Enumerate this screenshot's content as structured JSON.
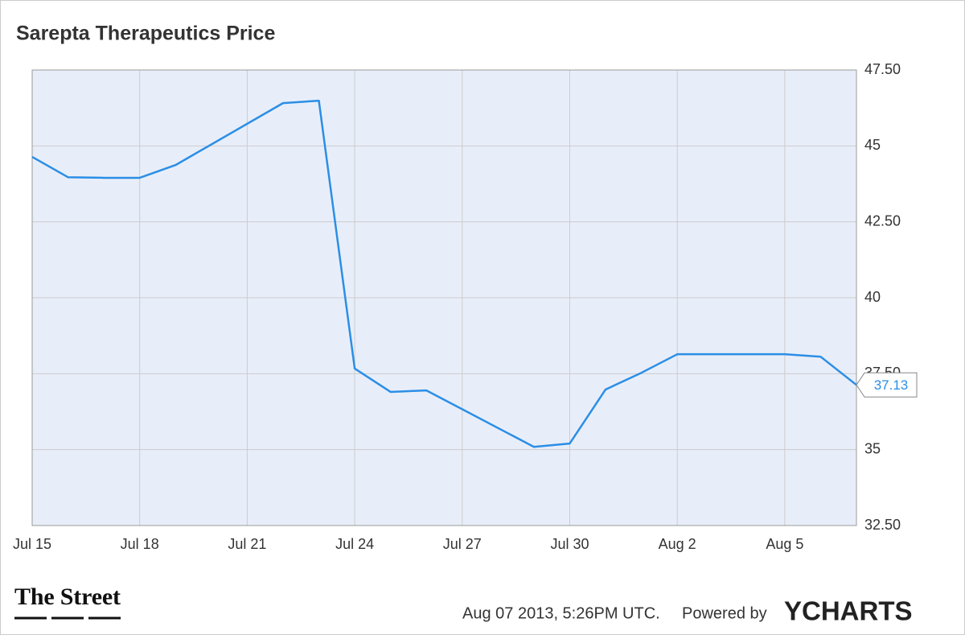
{
  "chart_data": {
    "type": "line",
    "title": "Sarepta Therapeutics Price",
    "x": [
      "Jul 15",
      "Jul 16",
      "Jul 17",
      "Jul 18",
      "Jul 19",
      "Jul 22",
      "Jul 23",
      "Jul 24",
      "Jul 25",
      "Jul 26",
      "Jul 29",
      "Jul 30",
      "Jul 31",
      "Aug 1",
      "Aug 2",
      "Aug 5",
      "Aug 6",
      "Aug 7"
    ],
    "series": [
      {
        "name": "Sarepta Therapeutics Price",
        "color": "#2b8ee6",
        "values": [
          44.64,
          43.97,
          43.95,
          43.95,
          44.37,
          46.41,
          46.49,
          37.67,
          36.9,
          36.95,
          35.09,
          35.2,
          36.98,
          37.53,
          38.14,
          38.14,
          38.06,
          37.13
        ]
      }
    ],
    "xlim": [
      "Jul 15",
      "Aug 7"
    ],
    "xticks": [
      "Jul 15",
      "Jul 18",
      "Jul 21",
      "Jul 24",
      "Jul 27",
      "Jul 30",
      "Aug 2",
      "Aug 5"
    ],
    "ylim": [
      32.5,
      47.5
    ],
    "yticks": [
      {
        "value": 32.5,
        "label": "32.50"
      },
      35,
      {
        "value": 37.5,
        "label": "37.50"
      },
      40,
      {
        "value": 42.5,
        "label": "42.50"
      },
      45,
      {
        "value": 47.5,
        "label": "47.50"
      }
    ],
    "grid": true,
    "background": "#e8eef9"
  },
  "footer": {
    "logo": "The Street",
    "timestamp": "Aug 07 2013, 5:26PM UTC.",
    "powered_by": "Powered by",
    "brand": "YCHARTS"
  }
}
